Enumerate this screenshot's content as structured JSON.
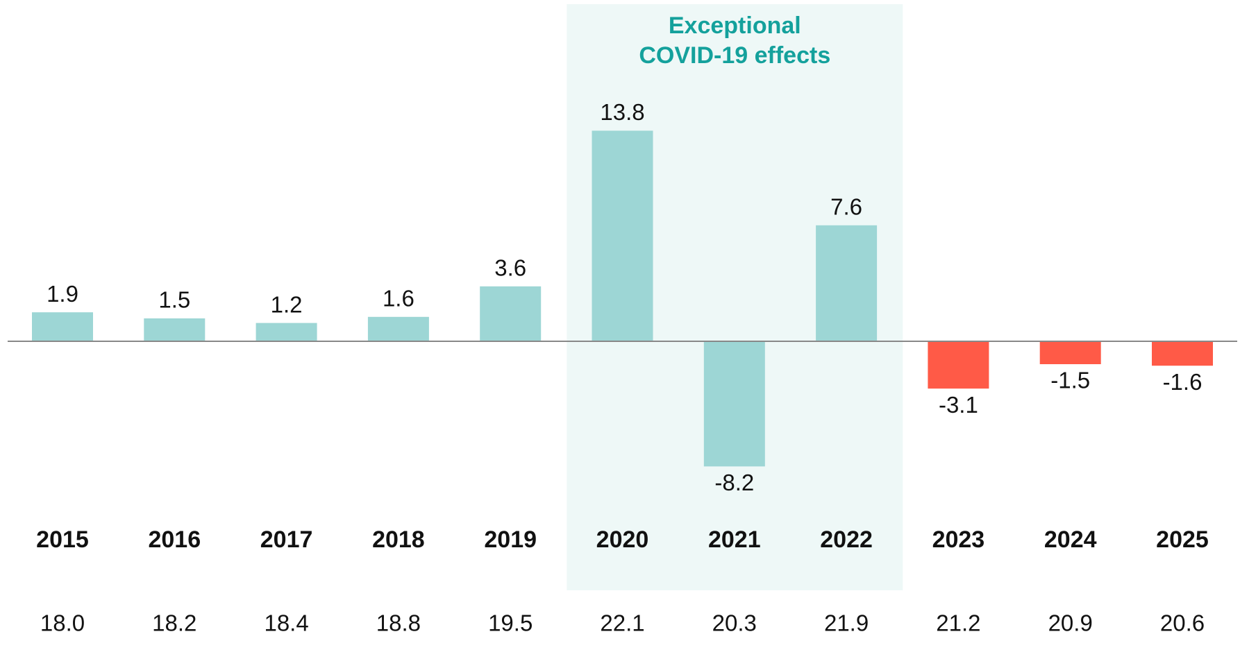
{
  "chart_data": {
    "type": "bar",
    "categories": [
      "2015",
      "2016",
      "2017",
      "2018",
      "2019",
      "2020",
      "2021",
      "2022",
      "2023",
      "2024",
      "2025"
    ],
    "values": [
      1.9,
      1.5,
      1.2,
      1.6,
      3.6,
      13.8,
      -8.2,
      7.6,
      -3.1,
      -1.5,
      -1.6
    ],
    "colors": [
      "#9dd6d5",
      "#9dd6d5",
      "#9dd6d5",
      "#9dd6d5",
      "#9dd6d5",
      "#9dd6d5",
      "#9dd6d5",
      "#9dd6d5",
      "#ff5a47",
      "#ff5a47",
      "#ff5a47"
    ],
    "table_values": [
      "18.0",
      "18.2",
      "18.4",
      "18.8",
      "19.5",
      "22.1",
      "20.3",
      "21.9",
      "21.2",
      "20.9",
      "20.6"
    ],
    "highlight": {
      "from": "2020",
      "to": "2022",
      "label": [
        "Exceptional",
        "COVID-19 effects"
      ],
      "color": "#14a19c",
      "fill": "#eef8f7"
    },
    "ylim": [
      -10,
      16
    ]
  }
}
